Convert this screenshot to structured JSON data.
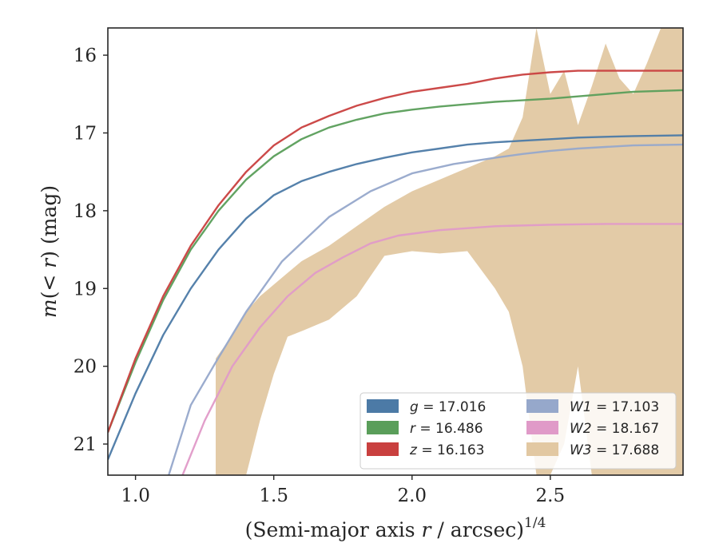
{
  "chart_data": {
    "type": "line",
    "xlabel": "(Semi-major axis r / arcsec)^1/4",
    "xlabel_parts": {
      "pre": "(Semi-major axis ",
      "var": "r",
      "post": " / arcsec)",
      "sup": "1/4"
    },
    "ylabel": "m(< r) (mag)",
    "ylabel_parts": {
      "m": "m",
      "open": "(",
      "lt": "< ",
      "r": "r",
      "close": ")",
      "unit": " (mag)"
    },
    "xlim": [
      0.9,
      2.98
    ],
    "ylim": [
      21.4,
      15.65
    ],
    "y_inverted": true,
    "xticks": [
      1.0,
      1.5,
      2.0,
      2.5
    ],
    "xtick_labels": [
      "1.0",
      "1.5",
      "2.0",
      "2.5"
    ],
    "yticks": [
      16,
      17,
      18,
      19,
      20,
      21
    ],
    "ytick_labels": [
      "16",
      "17",
      "18",
      "19",
      "20",
      "21"
    ],
    "grid": false,
    "legend": {
      "placement": "lower-right",
      "columns": 2
    },
    "series": [
      {
        "name": "g",
        "label": "g = 17.016",
        "sym": "g",
        "value": "17.016",
        "color": "#4c7aa6",
        "type": "line",
        "x": [
          0.9,
          1.0,
          1.1,
          1.2,
          1.3,
          1.4,
          1.5,
          1.6,
          1.7,
          1.8,
          1.9,
          2.0,
          2.1,
          2.2,
          2.3,
          2.4,
          2.5,
          2.6,
          2.7,
          2.8,
          2.98
        ],
        "y": [
          21.2,
          20.35,
          19.6,
          19.0,
          18.5,
          18.1,
          17.8,
          17.62,
          17.5,
          17.4,
          17.32,
          17.25,
          17.2,
          17.15,
          17.12,
          17.1,
          17.08,
          17.06,
          17.05,
          17.04,
          17.03
        ]
      },
      {
        "name": "r",
        "label": "r = 16.486",
        "sym": "r",
        "value": "16.486",
        "color": "#5a9e5a",
        "type": "line",
        "x": [
          0.9,
          1.0,
          1.1,
          1.2,
          1.3,
          1.4,
          1.5,
          1.6,
          1.7,
          1.8,
          1.9,
          2.0,
          2.1,
          2.2,
          2.3,
          2.4,
          2.5,
          2.6,
          2.7,
          2.8,
          2.98
        ],
        "y": [
          20.85,
          19.95,
          19.15,
          18.5,
          18.0,
          17.6,
          17.3,
          17.08,
          16.93,
          16.83,
          16.75,
          16.7,
          16.66,
          16.63,
          16.6,
          16.58,
          16.56,
          16.53,
          16.5,
          16.47,
          16.45
        ]
      },
      {
        "name": "z",
        "label": "z = 16.163",
        "sym": "z",
        "value": "16.163",
        "color": "#c9403f",
        "type": "line",
        "x": [
          0.9,
          1.0,
          1.1,
          1.2,
          1.3,
          1.4,
          1.5,
          1.6,
          1.7,
          1.8,
          1.9,
          2.0,
          2.1,
          2.2,
          2.3,
          2.4,
          2.5,
          2.6,
          2.7,
          2.8,
          2.98
        ],
        "y": [
          20.85,
          19.9,
          19.1,
          18.45,
          17.93,
          17.5,
          17.16,
          16.93,
          16.78,
          16.65,
          16.55,
          16.47,
          16.42,
          16.37,
          16.3,
          16.25,
          16.22,
          16.2,
          16.2,
          16.2,
          16.2
        ]
      },
      {
        "name": "W1",
        "label": "W1 = 17.103",
        "sym": "W1",
        "value": "17.103",
        "color": "#96a8cb",
        "type": "line",
        "x": [
          1.12,
          1.2,
          1.29,
          1.4,
          1.53,
          1.7,
          1.85,
          2.0,
          2.15,
          2.3,
          2.4,
          2.5,
          2.6,
          2.7,
          2.8,
          2.98
        ],
        "y": [
          21.4,
          20.5,
          19.95,
          19.3,
          18.65,
          18.08,
          17.75,
          17.52,
          17.4,
          17.32,
          17.27,
          17.23,
          17.2,
          17.18,
          17.16,
          17.15
        ]
      },
      {
        "name": "W2",
        "label": "W2 = 18.167",
        "sym": "W2",
        "value": "18.167",
        "color": "#e09ac8",
        "type": "line",
        "x": [
          1.17,
          1.25,
          1.35,
          1.45,
          1.55,
          1.65,
          1.75,
          1.85,
          1.95,
          2.1,
          2.3,
          2.5,
          2.7,
          2.98
        ],
        "y": [
          21.4,
          20.7,
          20.0,
          19.5,
          19.1,
          18.8,
          18.6,
          18.42,
          18.32,
          18.25,
          18.2,
          18.18,
          18.17,
          18.17
        ]
      },
      {
        "name": "W3",
        "label": "W3 = 17.688",
        "sym": "W3",
        "value": "17.688",
        "color": "#e2c8a2",
        "type": "band",
        "x": [
          1.29,
          1.35,
          1.4,
          1.45,
          1.5,
          1.55,
          1.6,
          1.7,
          1.8,
          1.9,
          2.0,
          2.1,
          2.2,
          2.3,
          2.35,
          2.4,
          2.45,
          2.5,
          2.55,
          2.6,
          2.65,
          2.7,
          2.75,
          2.8,
          2.85,
          2.9,
          2.95,
          2.98
        ],
        "y_low": [
          21.4,
          21.4,
          21.4,
          20.7,
          20.1,
          19.62,
          19.55,
          19.4,
          19.1,
          18.58,
          18.52,
          18.55,
          18.52,
          19.0,
          19.3,
          20.0,
          21.4,
          21.4,
          21.0,
          20.0,
          21.4,
          21.4,
          21.4,
          21.4,
          21.4,
          21.4,
          21.4,
          21.4
        ],
        "y_high": [
          19.9,
          19.6,
          19.3,
          19.1,
          18.95,
          18.8,
          18.65,
          18.45,
          18.2,
          17.95,
          17.75,
          17.6,
          17.45,
          17.3,
          17.2,
          16.8,
          15.65,
          16.5,
          16.2,
          16.9,
          16.4,
          15.85,
          16.3,
          16.5,
          16.1,
          15.65,
          15.65,
          15.65
        ]
      }
    ]
  }
}
